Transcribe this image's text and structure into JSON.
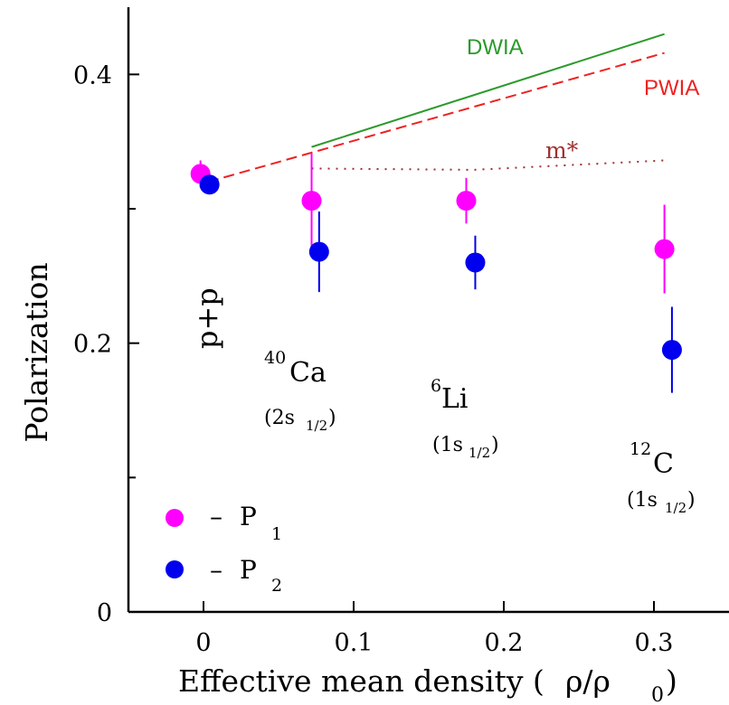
{
  "chart_data": {
    "type": "scatter",
    "xlabel": "Effective mean density (",
    "xlabel_symbol": "ρ/ρ",
    "xlabel_subscript": "0",
    "xlabel_close": ")",
    "ylabel": "Polarization",
    "xlim": [
      -0.05,
      0.35
    ],
    "ylim": [
      0,
      0.45
    ],
    "x_ticks": [
      0,
      0.1,
      0.2,
      0.3
    ],
    "x_tick_labels": [
      "0",
      "0.1",
      "0.2",
      "0.3"
    ],
    "y_ticks": [
      0,
      0.2,
      0.4
    ],
    "y_tick_labels": [
      "0",
      "0.2",
      "0.4"
    ],
    "y_minor_ticks": [
      0.1,
      0.3
    ],
    "series": [
      {
        "name": "P",
        "subscript": "1",
        "color": "#ff00ff",
        "points": [
          {
            "x": -0.002,
            "y": 0.326,
            "err": 0.01
          },
          {
            "x": 0.072,
            "y": 0.306,
            "err": 0.035
          },
          {
            "x": 0.175,
            "y": 0.306,
            "err": 0.017
          },
          {
            "x": 0.307,
            "y": 0.27,
            "err": 0.033
          }
        ]
      },
      {
        "name": "P",
        "subscript": "2",
        "color": "#0000ee",
        "points": [
          {
            "x": 0.004,
            "y": 0.318,
            "err": 0.005
          },
          {
            "x": 0.077,
            "y": 0.268,
            "err": 0.03
          },
          {
            "x": 0.181,
            "y": 0.26,
            "err": 0.02
          },
          {
            "x": 0.312,
            "y": 0.195,
            "err": 0.032
          }
        ]
      }
    ],
    "curves": [
      {
        "name": "DWIA",
        "color": "#2a9a2a",
        "style": "solid",
        "x": [
          0.072,
          0.307
        ],
        "y": [
          0.346,
          0.43
        ]
      },
      {
        "name": "PWIA",
        "color": "#ee2222",
        "style": "dashed",
        "x": [
          0.003,
          0.307
        ],
        "y": [
          0.32,
          0.416
        ]
      },
      {
        "name": "m*",
        "color": "#a03030",
        "style": "dotted",
        "x": [
          0.072,
          0.18,
          0.307
        ],
        "y": [
          0.33,
          0.329,
          0.336
        ]
      }
    ],
    "annotations": {
      "pp": "p+p",
      "ca_sup": "40",
      "ca": "Ca",
      "ca_orbital": "(2s",
      "ca_orbital_sub": "1/2",
      "ca_orbital_close": ")",
      "li_sup": "6",
      "li": "Li",
      "li_orbital": "(1s",
      "li_orbital_sub": "1/2",
      "li_orbital_close": ")",
      "c_sup": "12",
      "c": "C",
      "c_orbital": "(1s",
      "c_orbital_sub": "1/2",
      "c_orbital_close": ")"
    },
    "legend": {
      "position": "bottom-left",
      "dash": "–",
      "entries": [
        {
          "label": "P",
          "subscript": "1",
          "color": "#ff00ff"
        },
        {
          "label": "P",
          "subscript": "2",
          "color": "#0000ee"
        }
      ]
    }
  }
}
